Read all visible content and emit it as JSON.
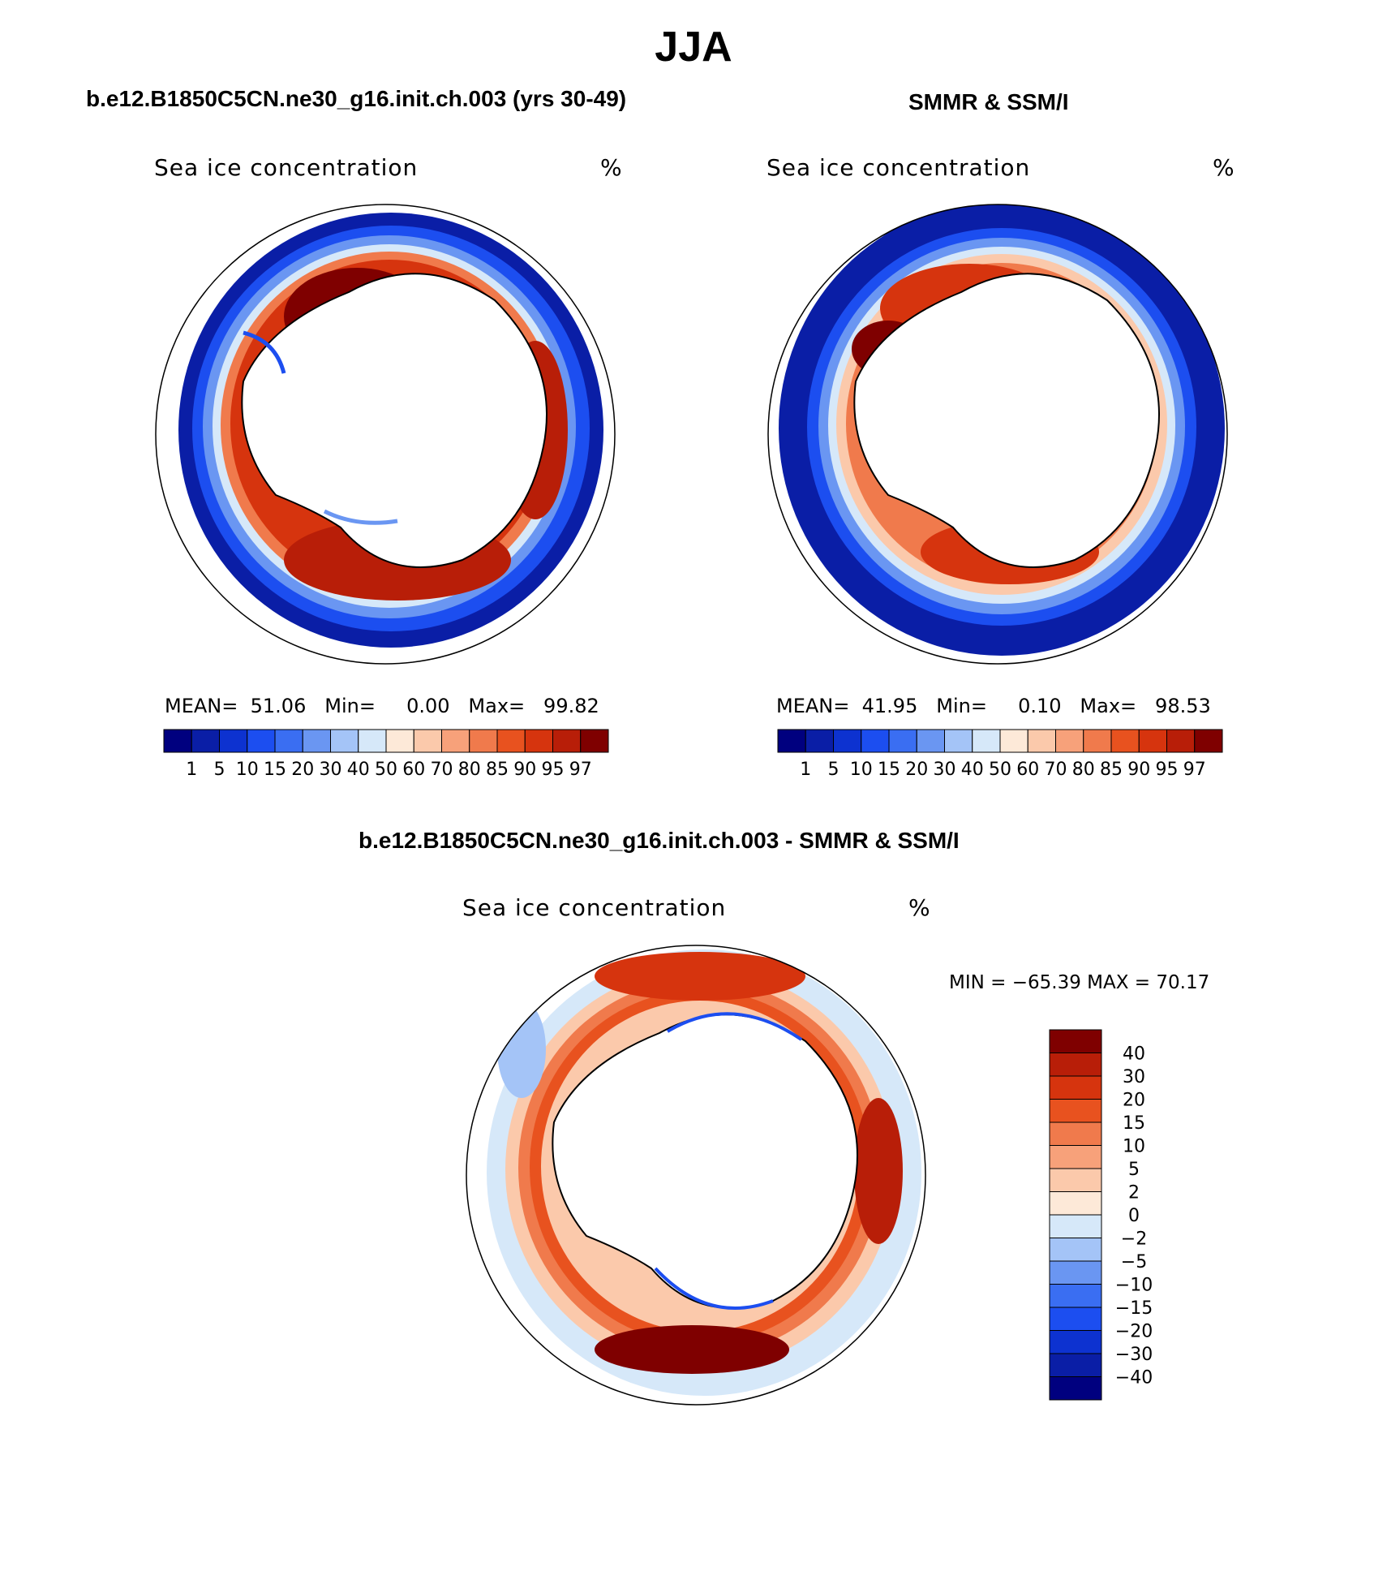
{
  "page": {
    "title": "JJA"
  },
  "panels": [
    {
      "title": "b.e12.B1850C5CN.ne30_g16.init.ch.003 (yrs 30-49)",
      "field": "Sea ice concentration",
      "unit": "%",
      "stats": {
        "mean_label": "MEAN=",
        "mean": "51.06",
        "min_label": "Min=",
        "min": "0.00",
        "max_label": "Max=",
        "max": "99.82"
      }
    },
    {
      "title": "SMMR & SSM/I",
      "field": "Sea ice concentration",
      "unit": "%",
      "stats": {
        "mean_label": "MEAN=",
        "mean": "41.95",
        "min_label": "Min=",
        "min": "0.10",
        "max_label": "Max=",
        "max": "98.53"
      }
    }
  ],
  "diff_panel": {
    "title": "b.e12.B1850C5CN.ne30_g16.init.ch.003 - SMMR & SSM/I",
    "field": "Sea ice concentration",
    "unit": "%",
    "minmax": "MIN = −65.39 MAX =   70.17"
  },
  "colorbar_abs": {
    "labels": [
      "1",
      "5",
      "10",
      "15",
      "20",
      "30",
      "40",
      "50",
      "60",
      "70",
      "80",
      "85",
      "90",
      "95",
      "97"
    ],
    "colors": [
      "#00007f",
      "#0a1ea6",
      "#0d32d0",
      "#1c4ef0",
      "#3a6ef2",
      "#6a96f2",
      "#a4c4f7",
      "#d6e8f9",
      "#fde9d8",
      "#fbc9ab",
      "#f7a17a",
      "#f07a4c",
      "#e8521f",
      "#d6340e",
      "#b81e08",
      "#7f0000"
    ]
  },
  "colorbar_diff": {
    "labels": [
      "40",
      "30",
      "20",
      "15",
      "10",
      "5",
      "2",
      "0",
      "−2",
      "−5",
      "−10",
      "−15",
      "−20",
      "−30",
      "−40"
    ],
    "colors": [
      "#7f0000",
      "#b81e08",
      "#d6340e",
      "#e8521f",
      "#f07a4c",
      "#f7a17a",
      "#fbc9ab",
      "#fde9d8",
      "#d6e8f9",
      "#a4c4f7",
      "#6a96f2",
      "#3a6ef2",
      "#1c4ef0",
      "#0d32d0",
      "#0a1ea6",
      "#00007f"
    ]
  }
}
